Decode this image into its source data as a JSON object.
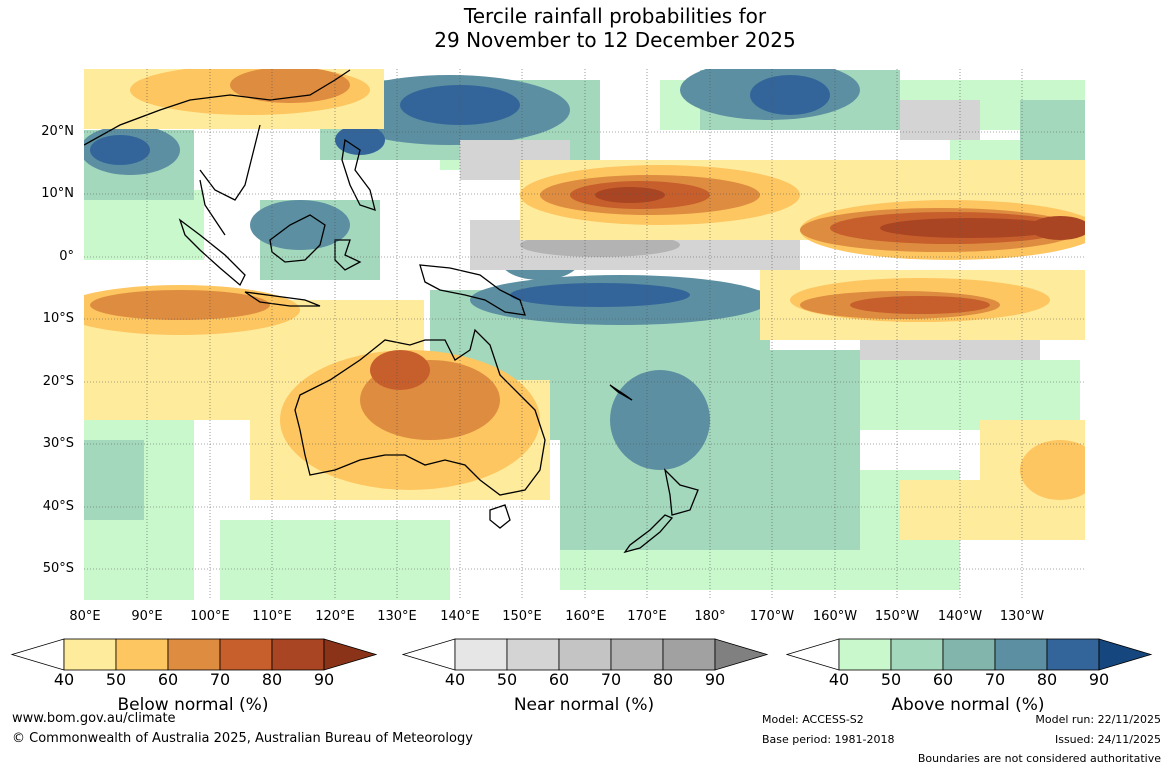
{
  "title": {
    "line1": "Tercile rainfall probabilities for",
    "line2": "29 November to 12 December 2025"
  },
  "map": {
    "lat_labels": [
      "20°N",
      "10°N",
      "0°",
      "10°S",
      "20°S",
      "30°S",
      "40°S",
      "50°S"
    ],
    "lon_labels": [
      "80°E",
      "90°E",
      "100°E",
      "110°E",
      "120°E",
      "130°E",
      "140°E",
      "150°E",
      "160°E",
      "170°E",
      "180°",
      "170°W",
      "160°W",
      "150°W",
      "140°W",
      "130°W"
    ]
  },
  "colorbars": [
    {
      "title": "Below normal (%)",
      "ticks": [
        "40",
        "50",
        "60",
        "70",
        "80",
        "90"
      ],
      "colors": [
        "#ffffff",
        "#ffeb9c",
        "#fdc660",
        "#de8c3f",
        "#c75f2d",
        "#a94522",
        "#8a3318"
      ]
    },
    {
      "title": "Near normal (%)",
      "ticks": [
        "40",
        "50",
        "60",
        "70",
        "80",
        "90"
      ],
      "colors": [
        "#ffffff",
        "#e6e6e6",
        "#d4d4d4",
        "#c4c4c4",
        "#b3b3b3",
        "#a1a1a1",
        "#808080"
      ]
    },
    {
      "title": "Above normal (%)",
      "ticks": [
        "40",
        "50",
        "60",
        "70",
        "80",
        "90"
      ],
      "colors": [
        "#ffffff",
        "#c9f8cc",
        "#a3d8bd",
        "#82b5ab",
        "#5b8fa1",
        "#33659a",
        "#16467e"
      ]
    }
  ],
  "footer": {
    "website": "www.bom.gov.au/climate",
    "copyright": "© Commonwealth of Australia 2025, Australian Bureau of Meteorology",
    "model": "Model: ACCESS-S2",
    "base_period": "Base period: 1981-2018",
    "model_run": "Model run: 22/11/2025",
    "issued": "Issued: 24/11/2025",
    "boundaries_note": "Boundaries are not considered authoritative"
  }
}
